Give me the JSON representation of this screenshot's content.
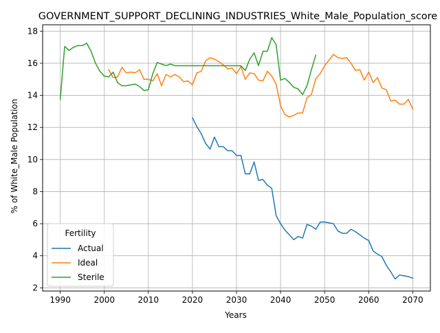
{
  "chart_data": {
    "type": "line",
    "title": "GOVERNMENT_SUPPORT_DECLINING_INDUSTRIES_White_Male_Population_score",
    "xlabel": "Years",
    "ylabel": "% of White_Male Population",
    "xlim": [
      1986,
      2074
    ],
    "ylim": [
      1.8,
      18.4
    ],
    "xticks": [
      1990,
      2000,
      2010,
      2020,
      2030,
      2040,
      2050,
      2060,
      2070
    ],
    "yticks": [
      2,
      4,
      6,
      8,
      10,
      12,
      14,
      16,
      18
    ],
    "grid": true,
    "legend": {
      "title": "Fertility",
      "placement": "lower-left"
    },
    "series": [
      {
        "name": "Actual",
        "color": "#1f77b4",
        "x": [
          2020,
          2021,
          2022,
          2023,
          2024,
          2025,
          2026,
          2027,
          2028,
          2029,
          2030,
          2031,
          2032,
          2033,
          2034,
          2035,
          2036,
          2037,
          2038,
          2039,
          2040,
          2041,
          2042,
          2043,
          2044,
          2045,
          2046,
          2047,
          2048,
          2049,
          2050,
          2051,
          2052,
          2053,
          2054,
          2055,
          2056,
          2057,
          2058,
          2059,
          2060,
          2061,
          2062,
          2063,
          2064,
          2065,
          2066,
          2067,
          2068,
          2069,
          2070
        ],
        "y": [
          12.6,
          12.05,
          11.6,
          11.0,
          10.65,
          11.4,
          10.8,
          10.8,
          10.55,
          10.55,
          10.25,
          10.25,
          9.1,
          9.1,
          9.85,
          8.7,
          8.75,
          8.4,
          8.2,
          6.5,
          6.0,
          5.6,
          5.3,
          5.0,
          5.2,
          5.1,
          5.95,
          5.85,
          5.65,
          6.1,
          6.1,
          6.05,
          6.0,
          5.55,
          5.4,
          5.4,
          5.65,
          5.5,
          5.3,
          5.1,
          4.95,
          4.3,
          4.1,
          3.95,
          3.4,
          3.0,
          2.55,
          2.8,
          2.75,
          2.7,
          2.6
        ]
      },
      {
        "name": "Ideal",
        "color": "#ff7f0e",
        "x": [
          2001,
          2002,
          2003,
          2004,
          2005,
          2006,
          2007,
          2008,
          2009,
          2010,
          2011,
          2012,
          2013,
          2014,
          2015,
          2016,
          2017,
          2018,
          2019,
          2020,
          2021,
          2022,
          2023,
          2024,
          2025,
          2026,
          2027,
          2028,
          2029,
          2030,
          2031,
          2032,
          2033,
          2034,
          2035,
          2036,
          2037,
          2038,
          2039,
          2040,
          2041,
          2042,
          2043,
          2044,
          2045,
          2046,
          2047,
          2048,
          2049,
          2050,
          2051,
          2052,
          2053,
          2054,
          2055,
          2056,
          2057,
          2058,
          2059,
          2060,
          2061,
          2062,
          2063,
          2064,
          2065,
          2066,
          2067,
          2068,
          2069,
          2070
        ],
        "y": [
          15.6,
          15.1,
          15.15,
          15.75,
          15.4,
          15.45,
          15.4,
          15.6,
          15.0,
          15.0,
          14.9,
          15.35,
          14.6,
          15.3,
          15.15,
          15.3,
          15.15,
          14.85,
          14.9,
          14.65,
          15.4,
          15.5,
          16.15,
          16.35,
          16.25,
          16.1,
          15.9,
          15.65,
          15.7,
          15.35,
          15.8,
          15.0,
          15.4,
          15.35,
          14.95,
          14.9,
          15.5,
          15.2,
          14.7,
          13.35,
          12.8,
          12.65,
          12.75,
          12.9,
          12.9,
          13.85,
          14.05,
          15.05,
          15.35,
          15.85,
          16.2,
          16.55,
          16.35,
          16.3,
          16.35,
          16.0,
          15.55,
          15.6,
          14.95,
          15.45,
          14.8,
          15.1,
          14.45,
          14.35,
          13.65,
          13.7,
          13.45,
          13.45,
          13.75,
          13.15
        ]
      },
      {
        "name": "Sterile",
        "color": "#2ca02c",
        "x": [
          1990,
          1991,
          1992,
          1993,
          1994,
          1995,
          1996,
          1997,
          1998,
          1999,
          2000,
          2001,
          2002,
          2003,
          2004,
          2005,
          2006,
          2007,
          2008,
          2009,
          2010,
          2011,
          2012,
          2013,
          2014,
          2015,
          2016,
          2017,
          2018,
          2019,
          2020,
          2021,
          2022,
          2023,
          2024,
          2025,
          2026,
          2027,
          2028,
          2029,
          2030,
          2031,
          2032,
          2033,
          2034,
          2035,
          2036,
          2037,
          2038,
          2039,
          2040,
          2041,
          2042,
          2043,
          2044,
          2045,
          2046,
          2047,
          2048
        ],
        "y": [
          13.75,
          17.05,
          16.8,
          17.0,
          17.1,
          17.1,
          17.25,
          16.75,
          16.0,
          15.5,
          15.2,
          15.15,
          15.45,
          14.8,
          14.6,
          14.6,
          14.65,
          14.7,
          14.55,
          14.3,
          14.35,
          15.35,
          16.05,
          15.95,
          15.85,
          15.95,
          15.85,
          15.85,
          15.85,
          15.85,
          15.85,
          15.85,
          15.85,
          15.85,
          15.85,
          15.85,
          15.85,
          15.85,
          15.85,
          15.85,
          15.85,
          15.85,
          15.55,
          16.25,
          16.65,
          15.85,
          16.75,
          16.75,
          17.6,
          17.15,
          14.95,
          15.05,
          14.8,
          14.5,
          14.4,
          14.05,
          14.6,
          15.6,
          16.5
        ]
      }
    ]
  }
}
